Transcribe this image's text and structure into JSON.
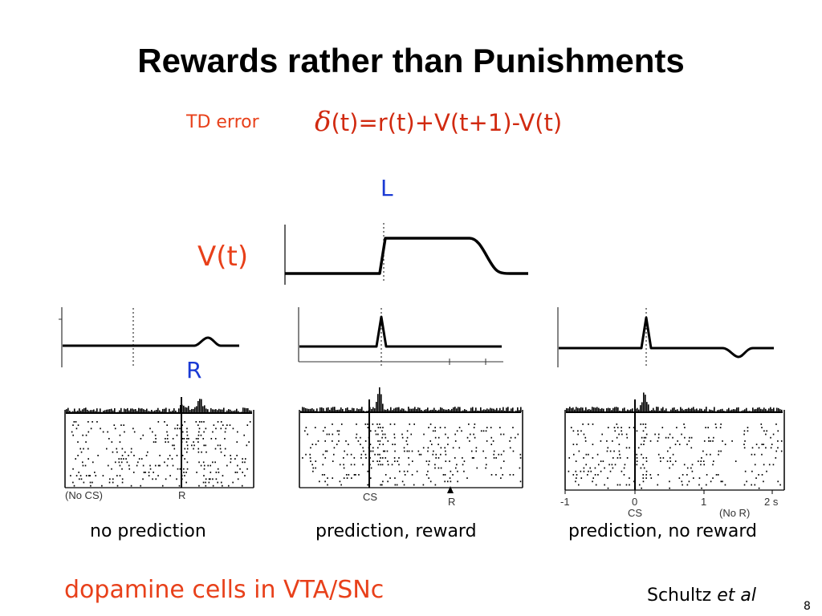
{
  "title": "Rewards rather than Punishments",
  "td_error": {
    "label": "TD error",
    "delta_symbol": "δ",
    "formula_rest": "(t)=r(t)+V(t+1)-V(t)"
  },
  "labels": {
    "L": "L",
    "V": "V(t)",
    "R": "R"
  },
  "panels": [
    {
      "caption": "no prediction",
      "axis_labels": [
        "(No CS)",
        "R"
      ]
    },
    {
      "caption": "prediction, reward",
      "axis_labels": [
        "CS",
        "R"
      ]
    },
    {
      "caption": "prediction, no reward",
      "axis_labels": [
        "-1",
        "0",
        "1",
        "2 s",
        "CS",
        "(No R)"
      ]
    }
  ],
  "footer": "dopamine cells in VTA/SNc",
  "credit": {
    "author": "Schultz",
    "etal": "et al"
  },
  "page_number": "8",
  "colors": {
    "title": "#000000",
    "accent_red": "#e8401a",
    "accent_blue": "#1a3ad4"
  }
}
